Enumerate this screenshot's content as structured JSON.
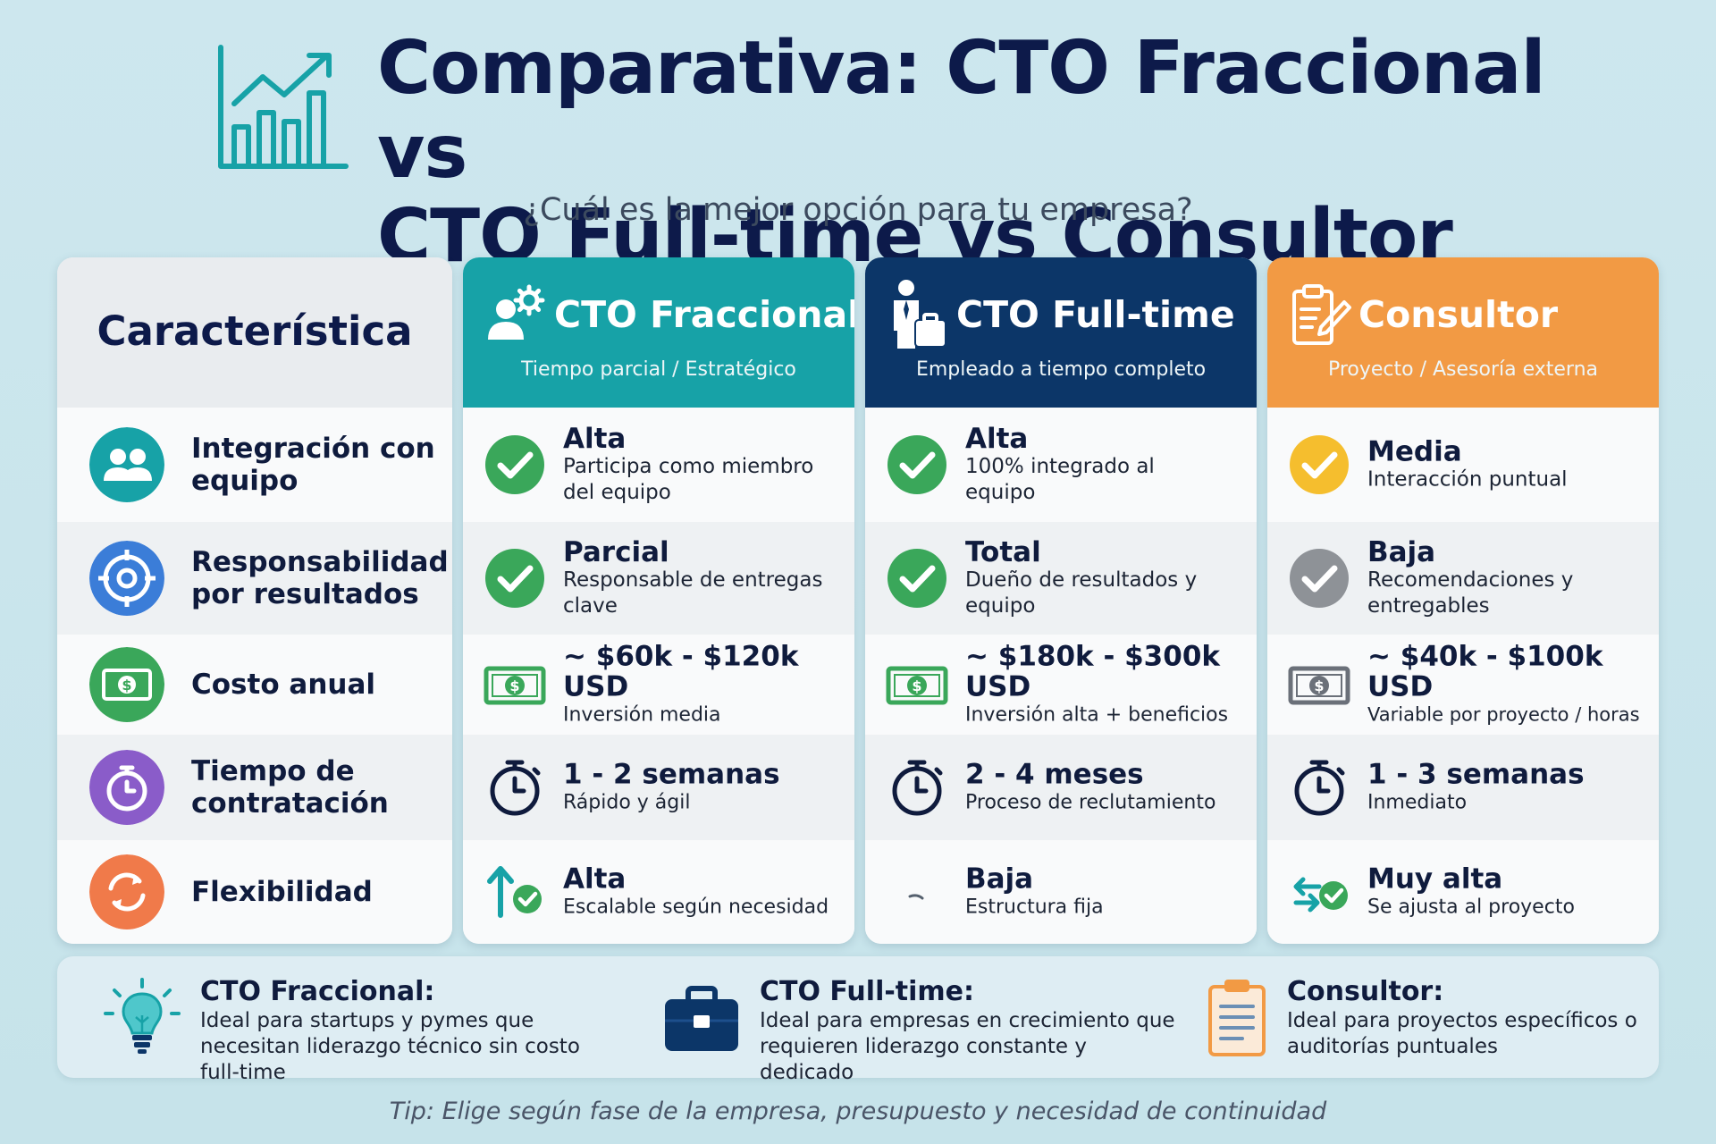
{
  "header": {
    "title_line1": "Comparativa: CTO Fraccional vs",
    "title_line2": "CTO Full-time vs Consultor",
    "subtitle": "¿Cuál es la mejor opción para tu empresa?",
    "logo_icon": "growth-chart-icon"
  },
  "columns": {
    "feature": {
      "title": "Característica"
    },
    "fraccional": {
      "title": "CTO Fraccional",
      "subtitle": "Tiempo parcial / Estratégico",
      "color": "#17a2a7",
      "icon": "user-gear-icon"
    },
    "fulltime": {
      "title": "CTO Full-time",
      "subtitle": "Empleado a tiempo completo",
      "color": "#0c3668",
      "icon": "businessman-briefcase-icon"
    },
    "consultor": {
      "title": "Consultor",
      "subtitle": "Proyecto / Asesoría externa",
      "color": "#f29a44",
      "icon": "clipboard-pen-icon"
    }
  },
  "features": [
    {
      "label": "Integración con equipo",
      "icon": "team-icon",
      "color": "#17a2a7"
    },
    {
      "label": "Responsabilidad por resultados",
      "icon": "target-icon",
      "color": "#3b7dd8"
    },
    {
      "label": "Costo anual",
      "icon": "money-icon",
      "color": "#3aa75a"
    },
    {
      "label": "Tiempo de contratación",
      "icon": "stopwatch-icon",
      "color": "#8a5cc9"
    },
    {
      "label": "Flexibilidad",
      "icon": "refresh-icon",
      "color": "#f07a4a"
    }
  ],
  "fraccional": [
    {
      "main": "Alta",
      "sub": "Participa como miembro del equipo",
      "icon": "check-green-icon"
    },
    {
      "main": "Parcial",
      "sub": "Responsable de entregas clave",
      "icon": "check-green-icon"
    },
    {
      "main": "~ $60k - $120k USD",
      "sub": "Inversión media",
      "icon": "money-bill-icon"
    },
    {
      "main": "1 - 2 semanas",
      "sub": "Rápido y ágil",
      "icon": "stopwatch-icon"
    },
    {
      "main": "Alta",
      "sub": "Escalable según necesidad",
      "icon": "arrow-up-check-icon"
    }
  ],
  "fulltime": [
    {
      "main": "Alta",
      "sub": "100% integrado al equipo",
      "icon": "check-green-icon"
    },
    {
      "main": "Total",
      "sub": "Dueño de resultados y equipo",
      "icon": "check-green-icon"
    },
    {
      "main": "~ $180k - $300k USD",
      "sub": "Inversión alta + beneficios",
      "icon": "money-bill-icon"
    },
    {
      "main": "2 - 4 meses",
      "sub": "Proceso de reclutamiento",
      "icon": "stopwatch-icon"
    },
    {
      "main": "Baja",
      "sub": "Estructura fija",
      "icon": "dash-icon"
    }
  ],
  "consultor": [
    {
      "main": "Media",
      "sub": "Interacción puntual",
      "icon": "check-yellow-icon"
    },
    {
      "main": "Baja",
      "sub": "Recomendaciones y entregables",
      "icon": "check-gray-icon"
    },
    {
      "main": "~ $40k - $100k USD",
      "sub": "Variable por proyecto / horas",
      "icon": "money-bill-gray-icon"
    },
    {
      "main": "1 - 3 semanas",
      "sub": "Inmediato",
      "icon": "stopwatch-icon"
    },
    {
      "main": "Muy alta",
      "sub": "Se ajusta al proyecto",
      "icon": "swap-check-icon"
    }
  ],
  "summary": [
    {
      "title": "CTO Fraccional:",
      "desc": "Ideal para startups y pymes que necesitan liderazgo técnico sin costo full-time",
      "icon": "lightbulb-icon"
    },
    {
      "title": "CTO Full-time:",
      "desc": "Ideal para empresas en crecimiento que requieren liderazgo constante y dedicado",
      "icon": "briefcase-icon"
    },
    {
      "title": "Consultor:",
      "desc": "Ideal para proyectos específicos o auditorías puntuales",
      "icon": "clipboard-icon"
    }
  ],
  "tip": "Tip: Elige según fase de la empresa, presupuesto y necesidad de continuidad"
}
